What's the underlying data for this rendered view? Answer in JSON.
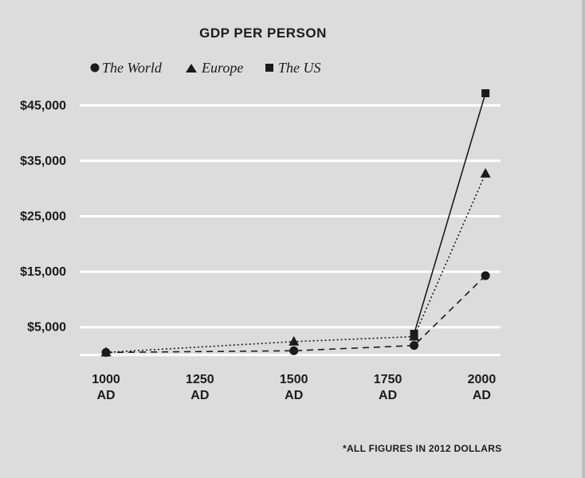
{
  "chart_data": {
    "type": "line",
    "title": "GDP PER PERSON",
    "x": [
      1000,
      1500,
      1820,
      2010
    ],
    "x_tick_values": [
      1000,
      1250,
      1500,
      1750,
      2000
    ],
    "x_tick_lines": [
      [
        "1000",
        "AD"
      ],
      [
        "1250",
        "AD"
      ],
      [
        "1500",
        "AD"
      ],
      [
        "1750",
        "AD"
      ],
      [
        "2000",
        "AD"
      ]
    ],
    "xlim": [
      930,
      2050
    ],
    "y_ticks": [
      5000,
      15000,
      25000,
      35000,
      45000
    ],
    "y_tick_labels": [
      "$5,000",
      "$15,000",
      "$25,000",
      "$35,000",
      "$45,000"
    ],
    "ylim": [
      0,
      50000
    ],
    "grid": true,
    "legend_position": "top",
    "series": [
      {
        "name": "The World",
        "marker": "circle",
        "dash": "8 6",
        "values": [
          450,
          750,
          1700,
          14300
        ]
      },
      {
        "name": "Europe",
        "marker": "triangle",
        "dash": "2 3",
        "values": [
          450,
          2400,
          3300,
          32700
        ]
      },
      {
        "name": "The US",
        "marker": "square",
        "dash": "",
        "values": [
          null,
          null,
          3800,
          47200
        ]
      }
    ],
    "footnote": "*ALL FIGURES IN 2012 DOLLARS"
  },
  "colors": {
    "background": "#dcdcdc",
    "grid": "#ffffff",
    "ink": "#1b1b1b"
  }
}
